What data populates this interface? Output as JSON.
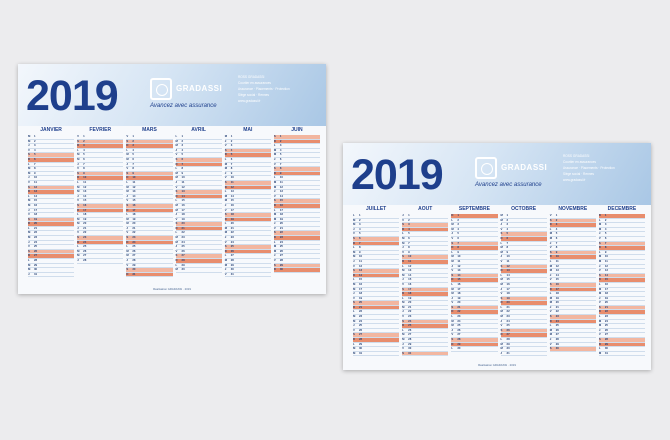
{
  "calendars": [
    {
      "year": "2019",
      "brand": "GRADASSI",
      "tagline": "Avancez avec assurance",
      "contact": [
        "ROSS GRADASSI",
        "Courtier en assurances",
        "Assurance · Placements · Protection",
        "",
        "Siège social · Rennes",
        "www.gradassi.fr"
      ],
      "months": [
        {
          "name": "JANVIER",
          "days": 31,
          "start": 1
        },
        {
          "name": "FEVRIER",
          "days": 28,
          "start": 4
        },
        {
          "name": "MARS",
          "days": 31,
          "start": 4
        },
        {
          "name": "AVRIL",
          "days": 30,
          "start": 0
        },
        {
          "name": "MAI",
          "days": 31,
          "start": 2
        },
        {
          "name": "JUIN",
          "days": 30,
          "start": 5
        }
      ],
      "footer": "Réalisation GRADASSI · 2019"
    },
    {
      "year": "2019",
      "brand": "GRADASSI",
      "tagline": "Avancez avec assurance",
      "contact": [
        "ROSS GRADASSI",
        "Courtier en assurances",
        "Assurance · Placements · Protection",
        "",
        "Siège social · Rennes",
        "www.gradassi.fr"
      ],
      "months": [
        {
          "name": "JUILLET",
          "days": 31,
          "start": 0
        },
        {
          "name": "AOUT",
          "days": 31,
          "start": 3
        },
        {
          "name": "SEPTEMBRE",
          "days": 30,
          "start": 6
        },
        {
          "name": "OCTOBRE",
          "days": 31,
          "start": 1
        },
        {
          "name": "NOVEMBRE",
          "days": 30,
          "start": 4
        },
        {
          "name": "DECEMBRE",
          "days": 31,
          "start": 6
        }
      ],
      "footer": "Réalisation GRADASSI · 2019"
    }
  ],
  "weekday_letters": [
    "L",
    "M",
    "M",
    "J",
    "V",
    "S",
    "D"
  ]
}
